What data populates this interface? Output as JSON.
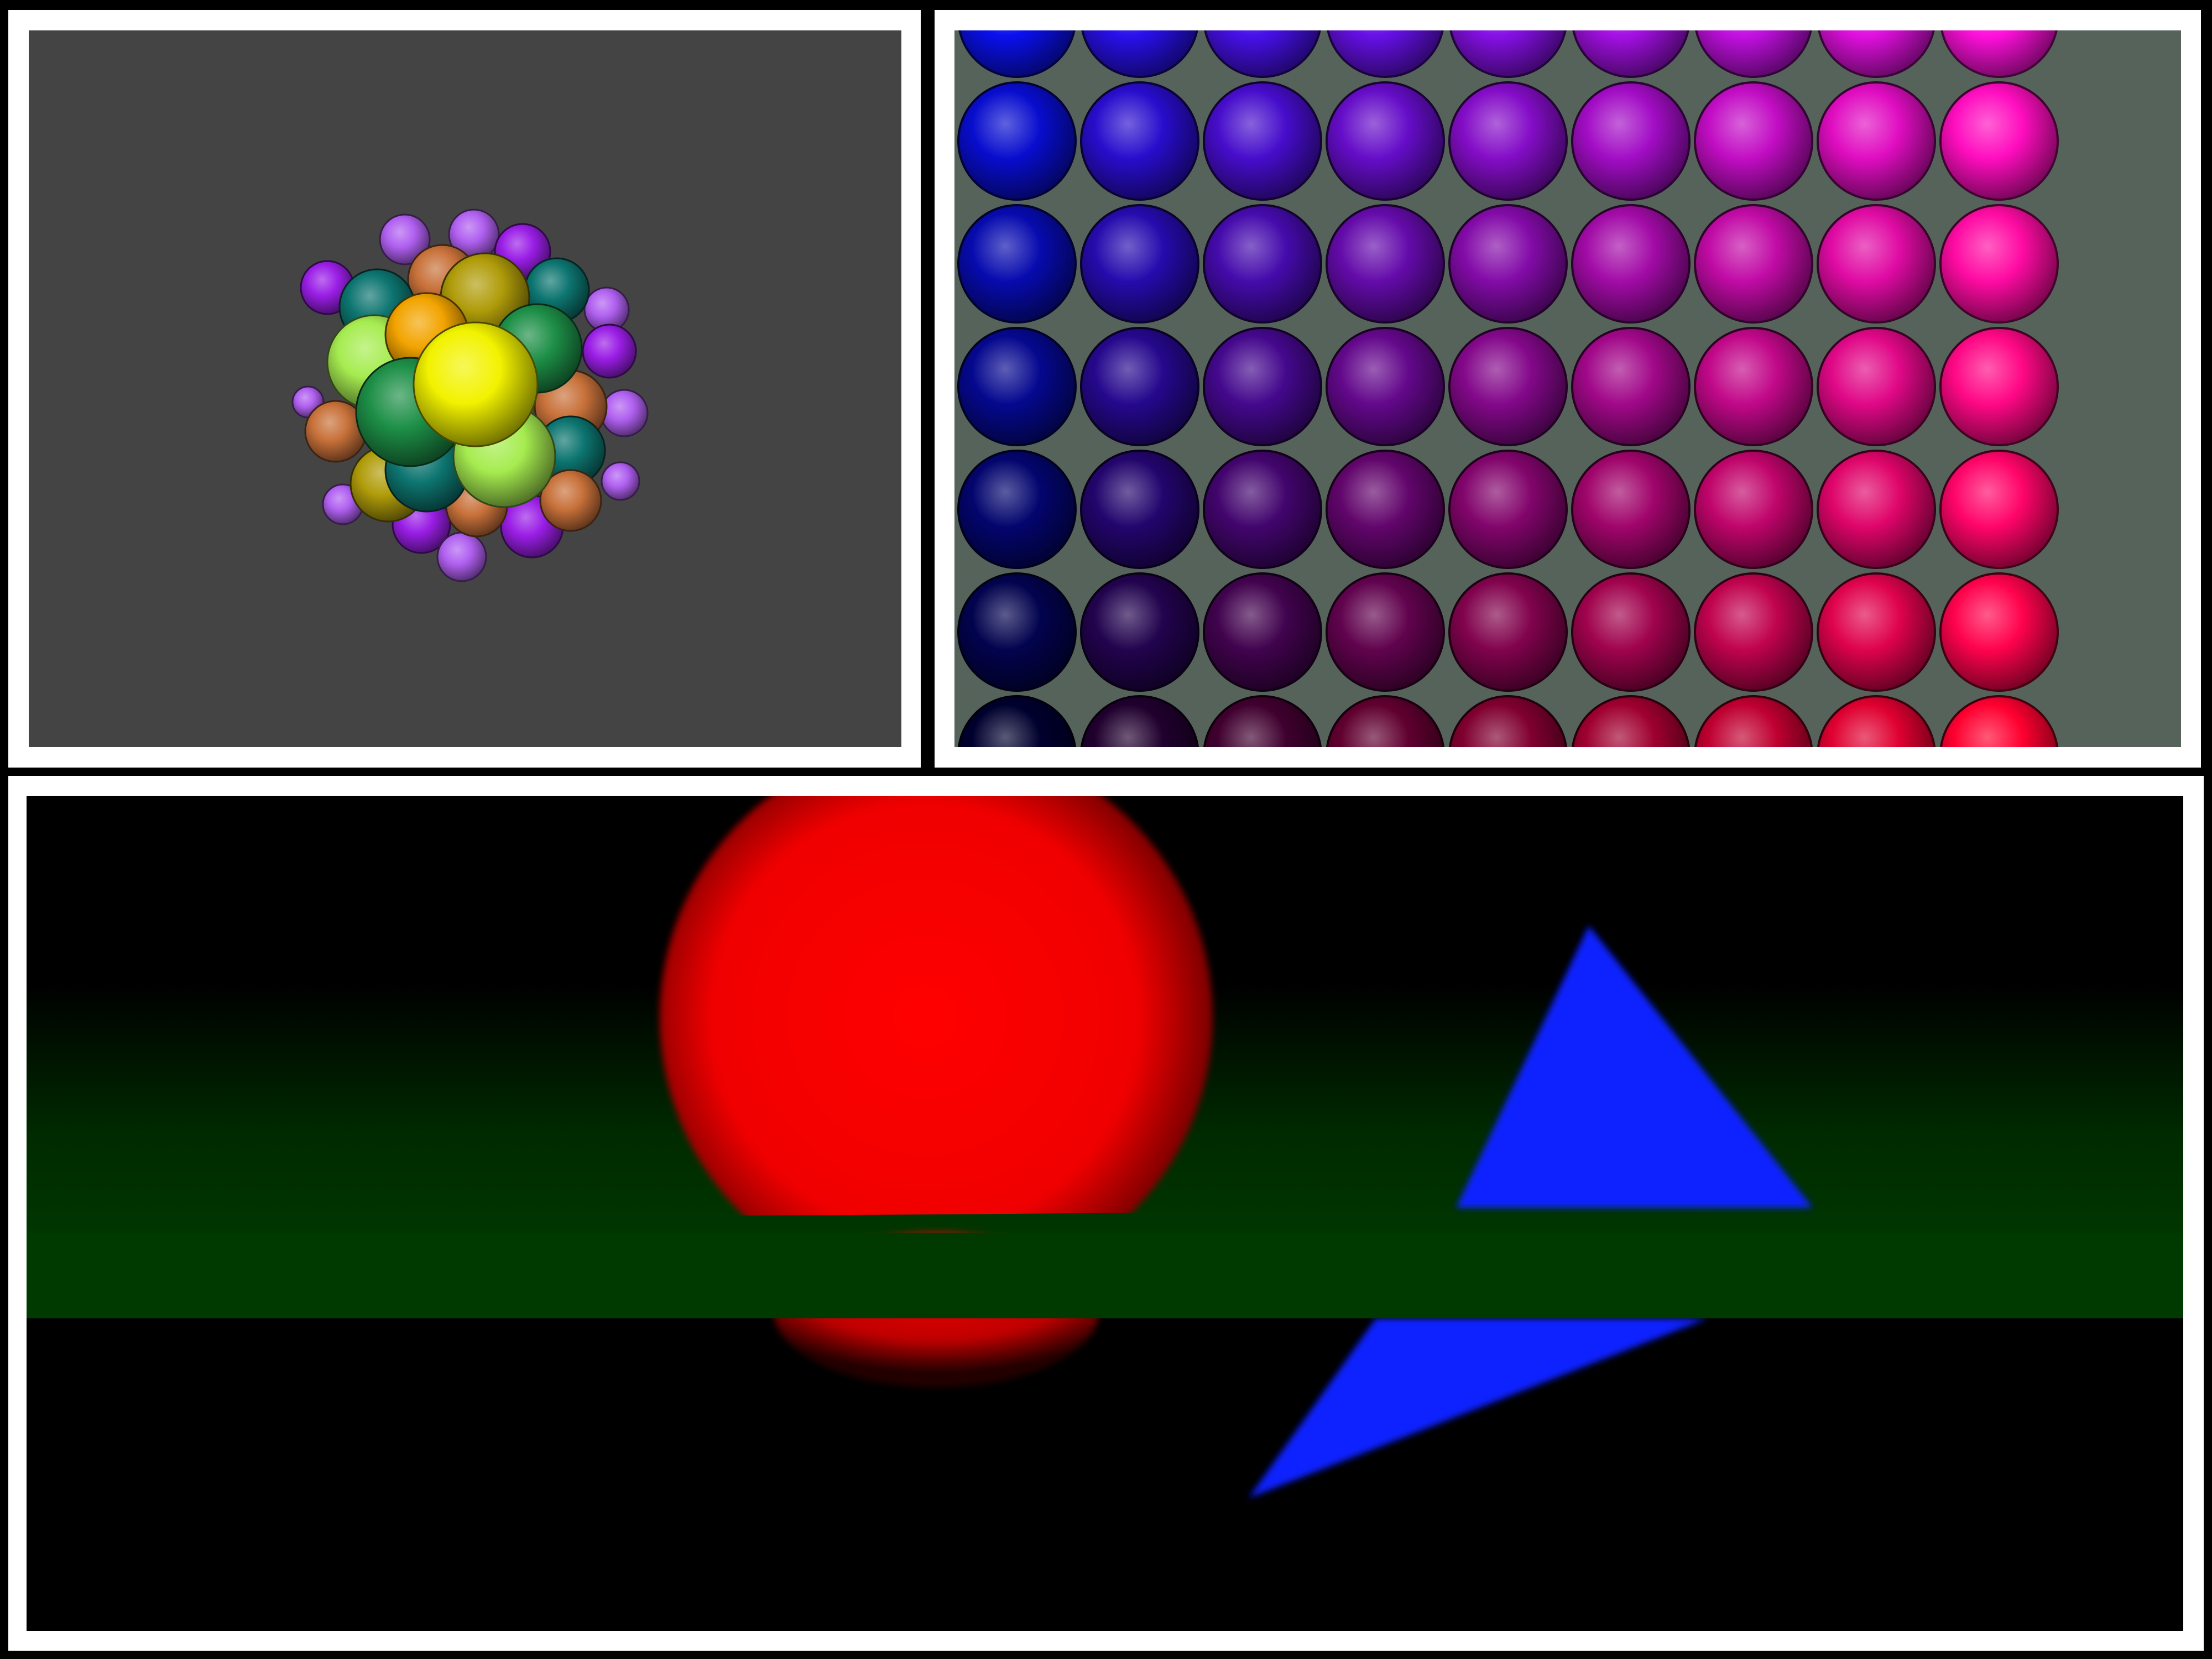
{
  "scenes": {
    "sphere_cluster": {
      "background": "#444444",
      "palette": {
        "yellow": "#f2f200",
        "lime": "#a6ec50",
        "green": "#1d8f47",
        "teal": "#0d7570",
        "olive": "#b09c0a",
        "orange": "#f2a400",
        "brown": "#c8713a",
        "violet": "#9a1ee6",
        "lavender": "#b060f0"
      }
    },
    "sphere_grid": {
      "background": "#55635a",
      "rows": 7,
      "cols": 9,
      "corner_colors": {
        "top_left": "#0a10ee",
        "top_right": "#ff10dc",
        "bottom_left": "#00002e",
        "bottom_right": "#ff0030"
      }
    },
    "ray_trace": {
      "background": "#000000",
      "floor_color": "#003a00",
      "sphere_color": "#ff0000",
      "triangle_color": "#1020ff"
    }
  }
}
